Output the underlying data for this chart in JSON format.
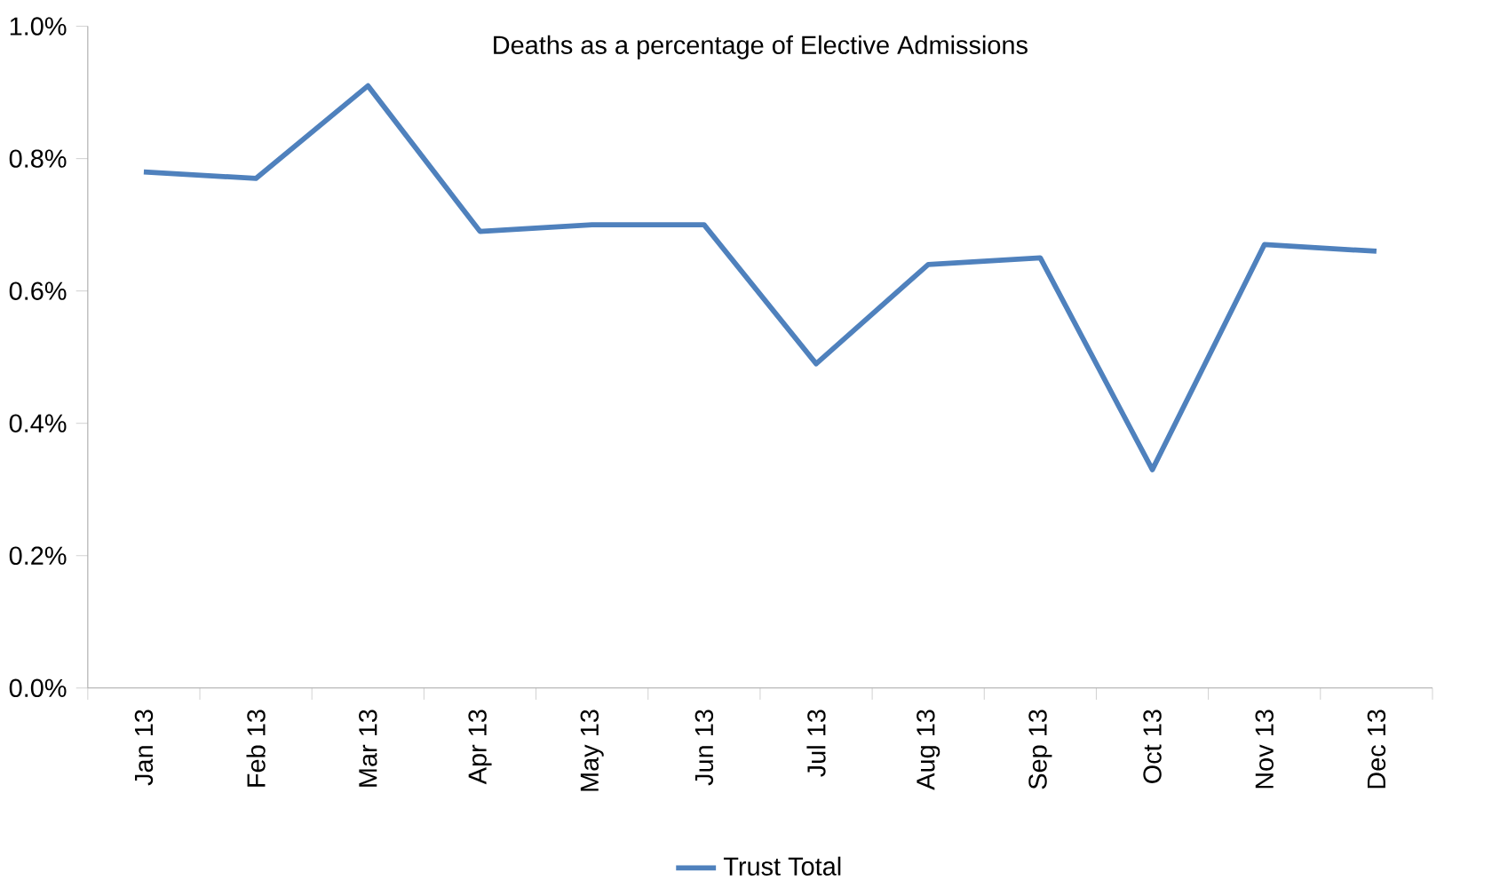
{
  "chart_data": {
    "type": "line",
    "title": "Deaths as a percentage of Elective Admissions",
    "categories": [
      "Jan 13",
      "Feb 13",
      "Mar 13",
      "Apr 13",
      "May 13",
      "Jun 13",
      "Jul 13",
      "Aug 13",
      "Sep 13",
      "Oct 13",
      "Nov 13",
      "Dec 13"
    ],
    "series": [
      {
        "name": "Trust Total",
        "color": "#4f81bd",
        "values": [
          0.78,
          0.77,
          0.91,
          0.69,
          0.7,
          0.7,
          0.49,
          0.64,
          0.65,
          0.33,
          0.67,
          0.66
        ]
      }
    ],
    "ylim": [
      0,
      1
    ],
    "yticks": [
      {
        "value": 0,
        "label": "0.0%"
      },
      {
        "value": 0.2,
        "label": "0.2%"
      },
      {
        "value": 0.4,
        "label": "0.4%"
      },
      {
        "value": 0.6,
        "label": "0.6%"
      },
      {
        "value": 0.8,
        "label": "0.8%"
      },
      {
        "value": 1,
        "label": "1.0%"
      }
    ],
    "grid": false,
    "legend": "bottom",
    "marker": "none",
    "line_style": "solid"
  }
}
